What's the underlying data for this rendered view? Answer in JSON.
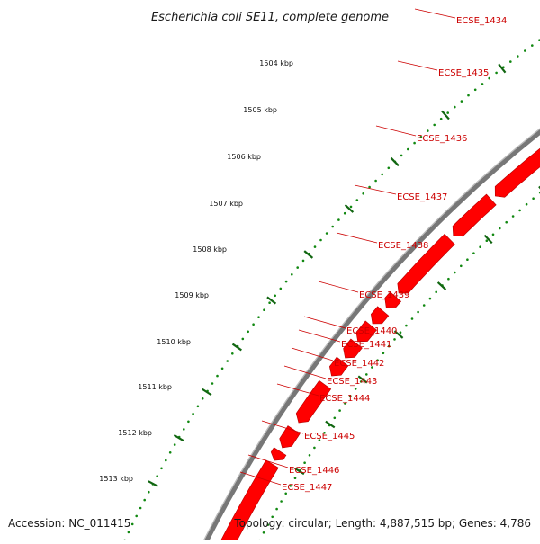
{
  "title": "Escherichia coli SE11, complete genome",
  "accession": "Accession: NC_011415",
  "summary": "Topology: circular; Length: 4,887,515 bp; Genes: 4,786",
  "colors": {
    "gene_fill": "#ff0000",
    "gene_edge": "#b30000",
    "gene_label": "#cc0000",
    "backbone": "#777777",
    "tick_dots": "#118811",
    "tick_major": "#116611"
  },
  "scale_labels": [
    {
      "label": "1504 kbp"
    },
    {
      "label": "1505 kbp"
    },
    {
      "label": "1506 kbp"
    },
    {
      "label": "1507 kbp"
    },
    {
      "label": "1508 kbp"
    },
    {
      "label": "1509 kbp"
    },
    {
      "label": "1510 kbp"
    },
    {
      "label": "1511 kbp"
    },
    {
      "label": "1512 kbp"
    },
    {
      "label": "1513 kbp"
    }
  ],
  "genes": [
    {
      "name": "ECSE_1434"
    },
    {
      "name": "ECSE_1435"
    },
    {
      "name": "ECSE_1436"
    },
    {
      "name": "ECSE_1437"
    },
    {
      "name": "ECSE_1438"
    },
    {
      "name": "ECSE_1439"
    },
    {
      "name": "ECSE_1440"
    },
    {
      "name": "ECSE_1441"
    },
    {
      "name": "ECSE_1442"
    },
    {
      "name": "ECSE_1443"
    },
    {
      "name": "ECSE_1444"
    },
    {
      "name": "ECSE_1445"
    },
    {
      "name": "ECSE_1446"
    },
    {
      "name": "ECSE_1447"
    }
  ]
}
